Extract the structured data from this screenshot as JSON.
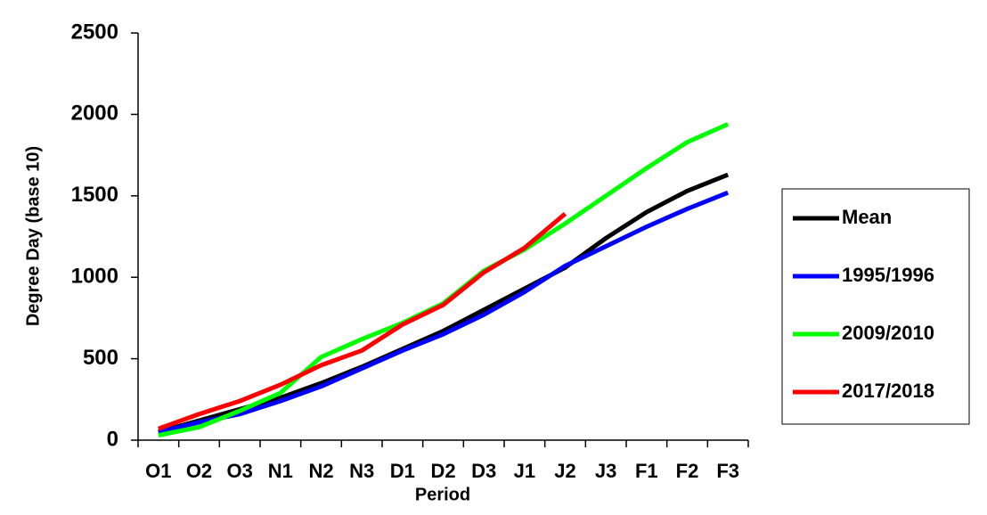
{
  "chart_data": {
    "type": "line",
    "x_label": "Period",
    "y_label": "Degree Day (base 10)",
    "categories": [
      "O1",
      "O2",
      "O3",
      "N1",
      "N2",
      "N3",
      "D1",
      "D2",
      "D3",
      "J1",
      "J2",
      "J3",
      "F1",
      "F2",
      "F3"
    ],
    "series": [
      {
        "name": "Mean",
        "color": "#000000",
        "values": [
          50,
          120,
          190,
          260,
          350,
          450,
          560,
          670,
          800,
          930,
          1060,
          1240,
          1400,
          1530,
          1630
        ]
      },
      {
        "name": "1995/1996",
        "color": "#0000ff",
        "values": [
          50,
          110,
          160,
          240,
          330,
          440,
          550,
          650,
          770,
          910,
          1070,
          1190,
          1310,
          1420,
          1520
        ]
      },
      {
        "name": "2009/2010",
        "color": "#00ff00",
        "values": [
          30,
          80,
          180,
          290,
          510,
          620,
          720,
          840,
          1040,
          1170,
          1330,
          1500,
          1670,
          1830,
          1940
        ]
      },
      {
        "name": "2017/2018",
        "color": "#ff0000",
        "values": [
          70,
          160,
          240,
          340,
          460,
          550,
          710,
          830,
          1030,
          1180,
          1390,
          null,
          null,
          null,
          null
        ]
      }
    ],
    "ylim": [
      0,
      2500
    ],
    "yticks": [
      0,
      500,
      1000,
      1500,
      2000,
      2500
    ],
    "grid": false,
    "legend": "right"
  }
}
